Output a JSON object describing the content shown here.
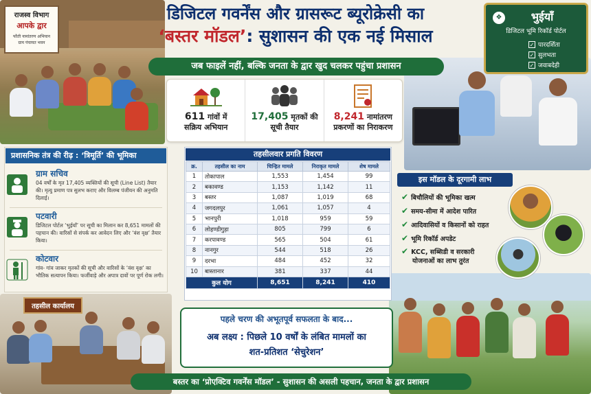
{
  "village_sign": {
    "line1": "राजस्व विभाग",
    "line2": "आपके द्वार",
    "line3": "फौती नामांतरण अभियान",
    "line4": "ग्राम पंचायत भवन"
  },
  "title": {
    "line1": "डिजिटल गवर्नेंस और ग्रासरूट ब्यूरोक्रेसी का",
    "line2_highlight": "‘बस्तर मॉडल’",
    "line2_rest": ": सुशासन की एक नई मिसाल"
  },
  "subtitle": "जब फाइलें नहीं, बल्कि जनता के द्वार खुद चलकर पहुंचा प्रशासन",
  "bhuiyan": {
    "title": "भुईयाँ",
    "subtitle": "डिजिटल भूमि रिकॉर्ड पोर्टल",
    "items": [
      "पारदर्शिता",
      "सुलभता",
      "जवाबदेही"
    ]
  },
  "stats": [
    {
      "icon": "village-icon",
      "number": "611",
      "text1": "गांवों में",
      "text2": "सक्रिय अभियान"
    },
    {
      "icon": "people-icon",
      "number": "17,405",
      "text1": "मृतकों की",
      "text2": "सूची तैयार"
    },
    {
      "icon": "document-icon",
      "number": "8,241",
      "text1": "नामांतरण",
      "text2": "प्रकरणों का निराकरण"
    }
  ],
  "roles": {
    "heading": "प्रशासनिक तंत्र की रीढ़ : ‘त्रिमूर्ति’ की भूमिका",
    "items": [
      {
        "icon": "secretary-icon",
        "title": "ग्राम सचिव",
        "desc": "04 वर्षों के मृत 17,405 व्यक्तियों की सूची (Line List) तैयार की। मृत्यु प्रमाण पत्र सुलभ कराए और विलम्ब पंजीयन की अनुमति दिलाई।"
      },
      {
        "icon": "patwari-icon",
        "title": "पटवारी",
        "desc": "डिजिटल पोर्टल ‘भुईयाँ’ पर सूची का मिलान कर 8,651 मामलों की पहचान की। वारिसों से संपर्क कर आवेदन लिए और ‘वंश वृक्ष’ तैयार किया।"
      },
      {
        "icon": "kotwar-icon",
        "title": "कोटवार",
        "desc": "गांव- गांव जाकर मृतकों की सूची और वारिसों के ‘वंश वृक्ष’ का भौतिक सत्यापन किया। फर्जीवाड़े और अपात्र दावों पर पूर्ण रोक लगी।"
      }
    ]
  },
  "table": {
    "heading": "तहसीलवार प्रगति विवरण",
    "columns": [
      "क्र.",
      "तहसील का नाम",
      "चिन्हित मामले",
      "निराकृत मामले",
      "शेष मामले"
    ],
    "rows": [
      [
        "1",
        "तोकापाल",
        "1,553",
        "1,454",
        "99"
      ],
      [
        "2",
        "बकावण्ड",
        "1,153",
        "1,142",
        "11"
      ],
      [
        "3",
        "बस्तर",
        "1,087",
        "1,019",
        "68"
      ],
      [
        "4",
        "जगदलपुर",
        "1,061",
        "1,057",
        "4"
      ],
      [
        "5",
        "भानपुरी",
        "1,018",
        "959",
        "59"
      ],
      [
        "6",
        "लोहण्डीगुड़ा",
        "805",
        "799",
        "6"
      ],
      [
        "7",
        "करपावण्ड",
        "565",
        "504",
        "61"
      ],
      [
        "8",
        "नानगुर",
        "544",
        "518",
        "26"
      ],
      [
        "9",
        "दरभा",
        "484",
        "452",
        "32"
      ],
      [
        "10",
        "बास्तानार",
        "381",
        "337",
        "44"
      ]
    ],
    "total": {
      "label": "कुल योग",
      "identified": "8,651",
      "resolved": "8,241",
      "pending": "410"
    }
  },
  "tahsil_sign": "तहसील कार्यालय",
  "achievement": {
    "line1": "पहले चरण की अभूतपूर्व सफलता के बाद...",
    "line2": "अब लक्ष्य : पिछले 10 वर्षों के लंबित मामलों का",
    "line3": "शत-प्रतिशत ‘सेचुरेशन’"
  },
  "benefits": {
    "heading": "इस मॉडल के दूरगामी लाभ",
    "items": [
      "बिचौलियों की भूमिका खत्म",
      "समय-सीमा में आदेश पारित",
      "आदिवासियों व किसानों को राहत",
      "भूमि रिकॉर्ड अपडेट"
    ],
    "item5_line1": "KCC, सब्सिडी व सरकारी",
    "item5_line2": "योजनाओं का लाभ तुरंत"
  },
  "footer": "बस्तर का ‘प्रोएक्टिव गवर्नेंस मॉडल’ - सुशासन की असली पहचान, जनता के द्वार प्रशासन",
  "colors": {
    "navy": "#0d2f6e",
    "red": "#c1272d",
    "green": "#1f6e3a",
    "table_header": "#173f7a"
  }
}
